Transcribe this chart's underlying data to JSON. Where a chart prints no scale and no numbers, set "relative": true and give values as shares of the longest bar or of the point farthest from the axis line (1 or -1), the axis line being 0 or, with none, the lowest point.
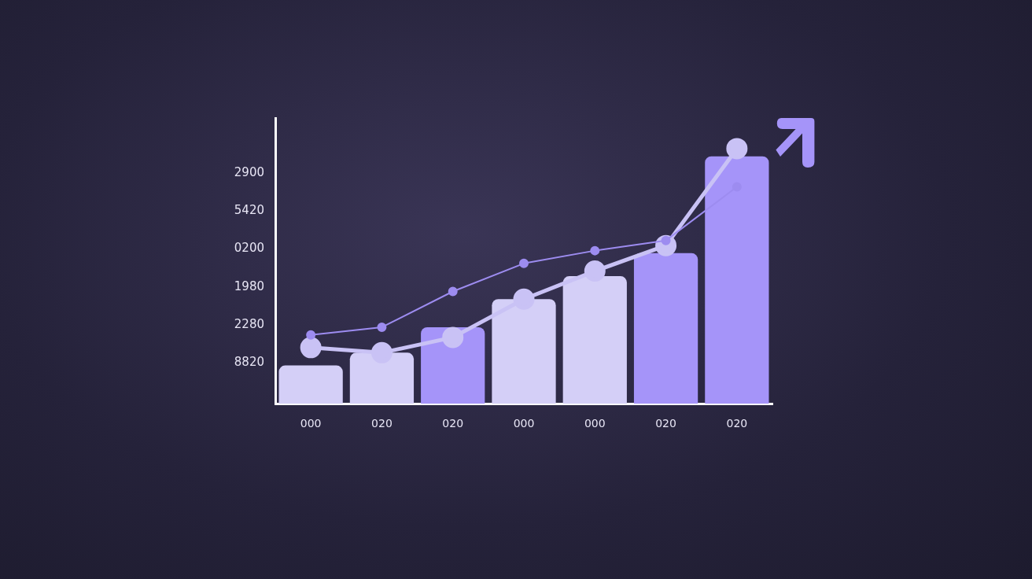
{
  "chart_data": {
    "type": "bar",
    "relative": true,
    "categories": [
      "000",
      "020",
      "020",
      "000",
      "000",
      "020",
      "020"
    ],
    "series": [
      {
        "colors": [
          "#d4cff7",
          "#d4cff7",
          "#a594f9",
          "#d4cff7",
          "#d4cff7",
          "#a594f9",
          "#a594f9"
        ],
        "values": [
          0.15,
          0.2,
          0.3,
          0.41,
          0.5,
          0.59,
          0.97
        ]
      },
      {
        "type": "line",
        "color": "#c9c2f5",
        "values": [
          0.22,
          0.2,
          0.26,
          0.41,
          0.52,
          0.62,
          1.0
        ]
      },
      {
        "type": "line",
        "color": "#9d8cf0",
        "values": [
          0.27,
          0.3,
          0.44,
          0.55,
          0.6,
          0.64,
          0.85
        ]
      }
    ],
    "annotations": [
      "2900",
      "5420",
      "0200",
      "1980",
      "2280",
      "8820"
    ],
    "marker": "circle",
    "grid": false,
    "legend": false
  }
}
